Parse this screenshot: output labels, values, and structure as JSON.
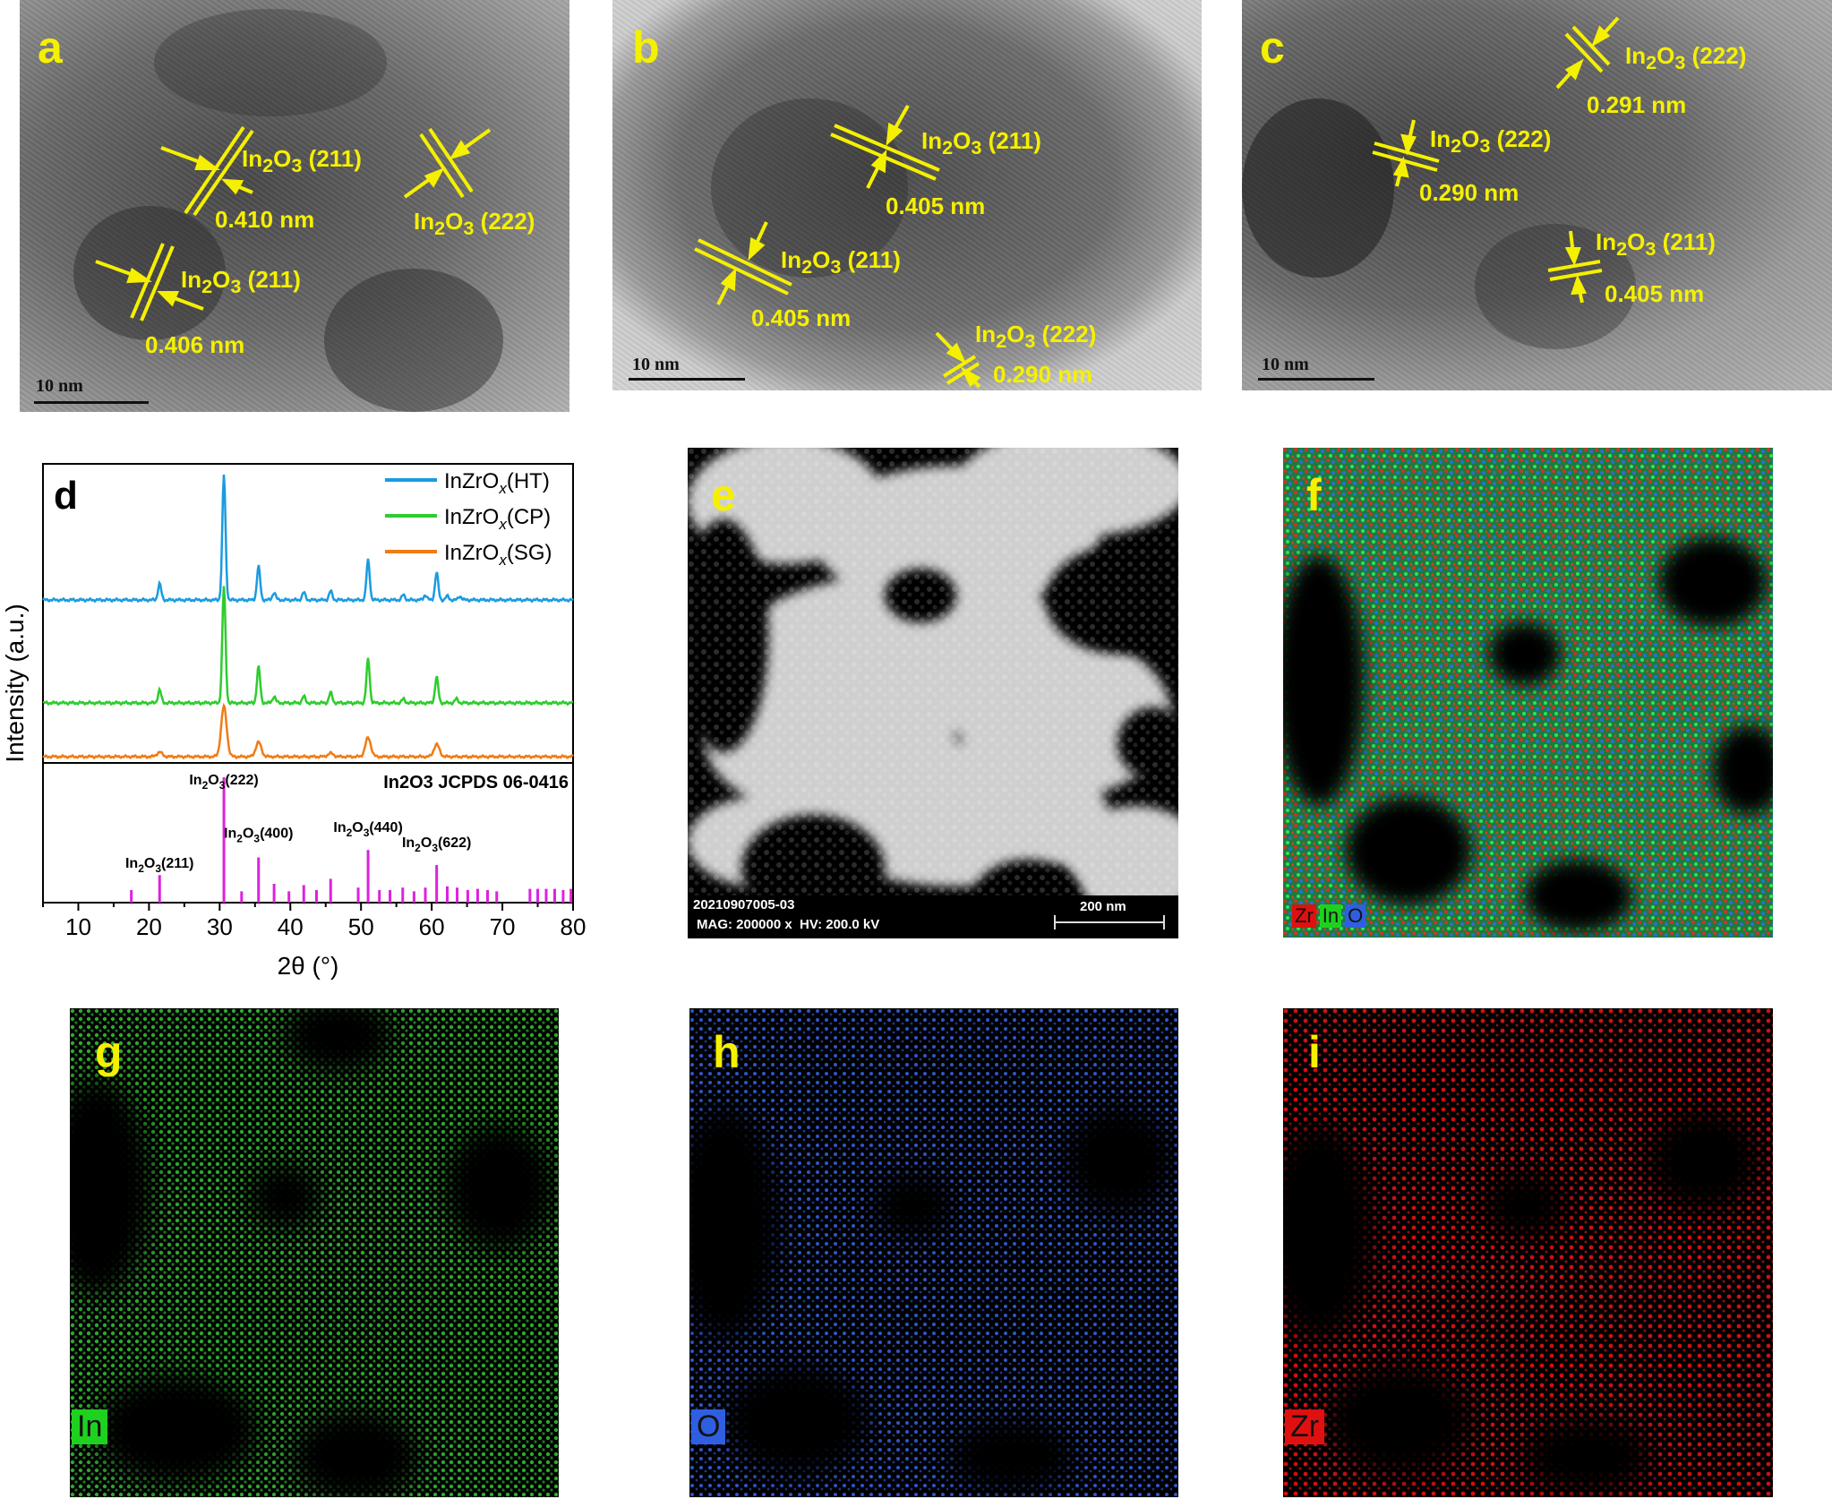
{
  "panels": {
    "a": {
      "letter": "a",
      "scale": "10 nm",
      "annotations": [
        {
          "plane": "In2O3 (211)",
          "spacing": "0.410 nm"
        },
        {
          "plane": "In2O3 (222)"
        },
        {
          "plane": "In2O3 (211)",
          "spacing": "0.406 nm"
        }
      ]
    },
    "b": {
      "letter": "b",
      "scale": "10 nm",
      "annotations": [
        {
          "plane": "In2O3 (211)",
          "spacing": "0.405 nm"
        },
        {
          "plane": "In2O3 (211)",
          "spacing": "0.405 nm"
        },
        {
          "plane": "In2O3 (222)",
          "spacing": "0.290 nm"
        }
      ]
    },
    "c": {
      "letter": "c",
      "scale": "10 nm",
      "annotations": [
        {
          "plane": "In2O3 (222)",
          "spacing": "0.291 nm"
        },
        {
          "plane": "In2O3 (222)",
          "spacing": "0.290 nm"
        },
        {
          "plane": "In2O3 (211)",
          "spacing": "0.405 nm"
        }
      ]
    },
    "e": {
      "letter": "e",
      "id_text": "20210907005-03",
      "meta_text": "MAG: 200000 x  HV: 200.0 kV",
      "scale": "200 nm"
    },
    "f": {
      "letter": "f",
      "legend": [
        "Zr",
        "In",
        "O"
      ]
    },
    "g": {
      "letter": "g",
      "legend": "In"
    },
    "h": {
      "letter": "h",
      "legend": "O"
    },
    "i": {
      "letter": "i",
      "legend": "Zr"
    }
  },
  "colors": {
    "label_yellow": "#f5f000",
    "HT": "#1a9be0",
    "CP": "#2ecc2e",
    "SG": "#f07c14",
    "reference": "#dd22dd",
    "In_map": "#1fd11f",
    "O_map": "#2f5fe0",
    "Zr_map": "#e01010"
  },
  "chart_data": {
    "type": "line",
    "panel_letter": "d",
    "xlabel": "2θ (°)",
    "ylabel": "Intensity (a.u.)",
    "xlim": [
      5,
      80
    ],
    "xticks": [
      10,
      20,
      30,
      40,
      50,
      60,
      70,
      80
    ],
    "legend_position": "top-right",
    "series": [
      {
        "name": "InZrOx(HT)",
        "legend_main": "InZrO",
        "legend_sub": "x",
        "legend_tail": "(HT)",
        "color": "#1a9be0",
        "peaks": [
          [
            21.5,
            0.13
          ],
          [
            30.6,
            1.0
          ],
          [
            35.5,
            0.27
          ],
          [
            37.7,
            0.06
          ],
          [
            41.9,
            0.06
          ],
          [
            45.7,
            0.07
          ],
          [
            51.0,
            0.32
          ],
          [
            56.0,
            0.04
          ],
          [
            59.1,
            0.04
          ],
          [
            60.7,
            0.22
          ],
          [
            62.2,
            0.03
          ],
          [
            64.0,
            0.03
          ]
        ]
      },
      {
        "name": "InZrOx(CP)",
        "legend_main": "InZrO",
        "legend_sub": "x",
        "legend_tail": "(CP)",
        "color": "#2ecc2e",
        "peaks": [
          [
            21.5,
            0.1
          ],
          [
            30.6,
            0.9
          ],
          [
            35.5,
            0.28
          ],
          [
            37.7,
            0.05
          ],
          [
            41.9,
            0.05
          ],
          [
            45.7,
            0.08
          ],
          [
            51.0,
            0.34
          ],
          [
            56.0,
            0.03
          ],
          [
            60.7,
            0.2
          ],
          [
            63.5,
            0.03
          ]
        ]
      },
      {
        "name": "InZrOx(SG)",
        "legend_main": "InZrO",
        "legend_sub": "x",
        "legend_tail": "(SG)",
        "color": "#f07c14",
        "peaks": [
          [
            21.5,
            0.04
          ],
          [
            30.6,
            0.45
          ],
          [
            35.5,
            0.13
          ],
          [
            45.7,
            0.03
          ],
          [
            51.0,
            0.17
          ],
          [
            60.7,
            0.11
          ]
        ]
      }
    ],
    "reference": {
      "title": "In2O3 JCPDS 06-0416",
      "lines": [
        [
          17.5,
          0.1
        ],
        [
          21.5,
          0.22
        ],
        [
          30.6,
          1.0
        ],
        [
          33.1,
          0.09
        ],
        [
          35.5,
          0.36
        ],
        [
          37.7,
          0.15
        ],
        [
          39.8,
          0.09
        ],
        [
          41.9,
          0.14
        ],
        [
          43.7,
          0.1
        ],
        [
          45.7,
          0.19
        ],
        [
          49.6,
          0.12
        ],
        [
          51.0,
          0.42
        ],
        [
          52.6,
          0.1
        ],
        [
          54.1,
          0.1
        ],
        [
          55.9,
          0.12
        ],
        [
          57.5,
          0.09
        ],
        [
          59.1,
          0.12
        ],
        [
          60.7,
          0.3
        ],
        [
          62.2,
          0.13
        ],
        [
          63.6,
          0.12
        ],
        [
          65.1,
          0.1
        ],
        [
          66.5,
          0.11
        ],
        [
          67.9,
          0.1
        ],
        [
          69.2,
          0.09
        ],
        [
          73.9,
          0.11
        ],
        [
          75.0,
          0.11
        ],
        [
          76.2,
          0.11
        ],
        [
          77.4,
          0.11
        ],
        [
          78.6,
          0.1
        ],
        [
          79.7,
          0.11
        ]
      ],
      "labels": [
        {
          "x": 21.5,
          "text_main": "In",
          "sub1": "2",
          "mid": "O",
          "sub2": "3",
          "tail": "(211)"
        },
        {
          "x": 30.6,
          "text_main": "In",
          "sub1": "2",
          "mid": "O",
          "sub2": "3",
          "tail": "(222)"
        },
        {
          "x": 35.5,
          "text_main": "In",
          "sub1": "2",
          "mid": "O",
          "sub2": "3",
          "tail": "(400)"
        },
        {
          "x": 51.0,
          "text_main": "In",
          "sub1": "2",
          "mid": "O",
          "sub2": "3",
          "tail": "(440)"
        },
        {
          "x": 60.7,
          "text_main": "In",
          "sub1": "2",
          "mid": "O",
          "sub2": "3",
          "tail": "(622)"
        }
      ]
    }
  }
}
